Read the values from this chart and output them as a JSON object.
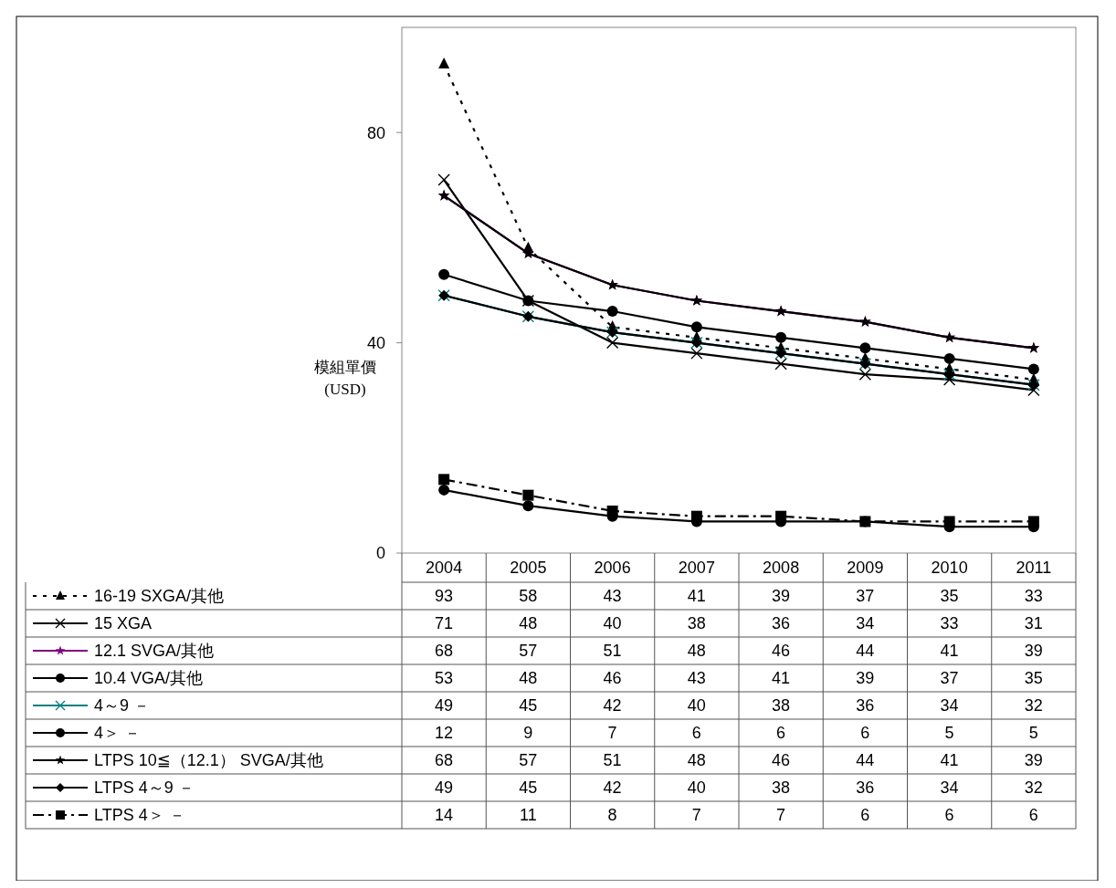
{
  "chart_data": {
    "type": "line",
    "ylabel": "模組單價\n(USD)",
    "categories": [
      "2004",
      "2005",
      "2006",
      "2007",
      "2008",
      "2009",
      "2010",
      "2011"
    ],
    "ylim": [
      0,
      100
    ],
    "yticks": [
      0,
      40,
      80
    ],
    "grid": false,
    "legend": "bottom",
    "data_labels": true,
    "series": [
      {
        "name": "16-19 SXGA/其他",
        "color": "#000000",
        "marker": "triangle",
        "line_style": "dotted",
        "values": [
          93,
          58,
          43,
          41,
          39,
          37,
          35,
          33
        ]
      },
      {
        "name": "15 XGA",
        "color": "#000000",
        "marker": "cross",
        "line_style": "solid",
        "values": [
          71,
          48,
          40,
          38,
          36,
          34,
          33,
          31
        ]
      },
      {
        "name": "12.1 SVGA/其他",
        "color": "#800080",
        "marker": "star",
        "line_style": "solid",
        "values": [
          68,
          57,
          51,
          48,
          46,
          44,
          41,
          39
        ]
      },
      {
        "name": "10.4 VGA/其他",
        "color": "#000000",
        "marker": "circle",
        "line_style": "solid",
        "values": [
          53,
          48,
          46,
          43,
          41,
          39,
          37,
          35
        ]
      },
      {
        "name": "4～9 －",
        "color": "#008080",
        "marker": "cross",
        "line_style": "solid",
        "values": [
          49,
          45,
          42,
          40,
          38,
          36,
          34,
          32
        ]
      },
      {
        "name": "4＞ －",
        "color": "#000000",
        "marker": "circle",
        "line_style": "solid",
        "values": [
          12,
          9,
          7,
          6,
          6,
          6,
          5,
          5
        ]
      },
      {
        "name": "LTPS 10≦（12.1） SVGA/其他",
        "color": "#000000",
        "marker": "star",
        "line_style": "solid",
        "values": [
          68,
          57,
          51,
          48,
          46,
          44,
          41,
          39
        ]
      },
      {
        "name": "LTPS 4～9 －",
        "color": "#000000",
        "marker": "diamond",
        "line_style": "solid",
        "values": [
          49,
          45,
          42,
          40,
          38,
          36,
          34,
          32
        ]
      },
      {
        "name": "LTPS 4＞ －",
        "color": "#000000",
        "marker": "square",
        "line_style": "dashed",
        "values": [
          14,
          11,
          8,
          7,
          7,
          6,
          6,
          6
        ]
      }
    ]
  }
}
